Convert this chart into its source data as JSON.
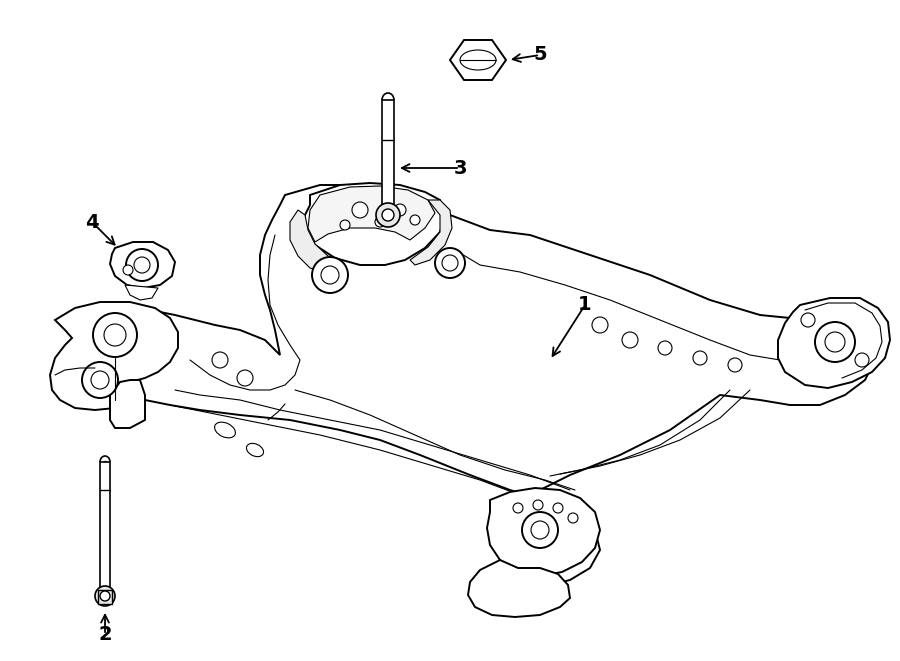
{
  "bg_color": "#ffffff",
  "line_color": "#000000",
  "fig_width": 9.0,
  "fig_height": 6.61,
  "dpi": 100,
  "lw_main": 1.4,
  "lw_thin": 0.8,
  "lw_thick": 2.0
}
